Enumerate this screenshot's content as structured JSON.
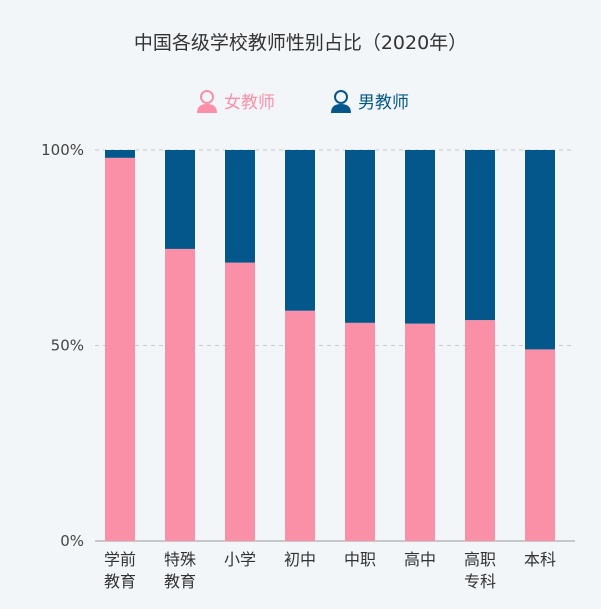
{
  "chart_data": {
    "type": "bar",
    "stacked": true,
    "title": "中国各级学校教师性别占比（2020年）",
    "categories": [
      [
        "学前",
        "教育"
      ],
      [
        "特殊",
        "教育"
      ],
      [
        "小学"
      ],
      [
        "初中"
      ],
      [
        "中职"
      ],
      [
        "高中"
      ],
      [
        "高职",
        "专科"
      ],
      [
        "本科"
      ]
    ],
    "series": [
      {
        "name": "女教师",
        "color": "#f990a8",
        "values": [
          98,
          74.7,
          71.2,
          58.9,
          55.8,
          55.6,
          56.5,
          49.0
        ]
      },
      {
        "name": "男教师",
        "color": "#03578a",
        "values": [
          2,
          25.3,
          28.8,
          41.1,
          44.2,
          44.4,
          43.5,
          51.0
        ]
      }
    ],
    "ylim": [
      0,
      100
    ],
    "yticks": [
      "0%",
      "50%",
      "100%"
    ],
    "grid": true,
    "legend": "top-center"
  }
}
